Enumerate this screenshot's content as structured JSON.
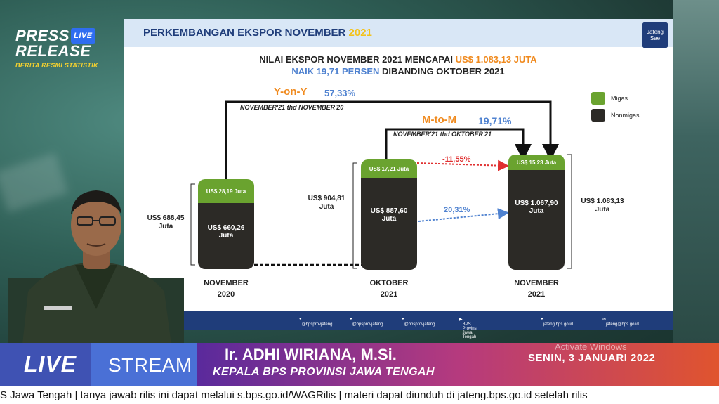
{
  "brand": {
    "press": "PRESS",
    "live_badge": "LIVE",
    "release": "RELEASE",
    "subtitle": "BERITA RESMI STATISTIK"
  },
  "slide": {
    "title_main": "PERKEMBANGAN EKSPOR NOVEMBER ",
    "title_year": "2021",
    "logo_text": "Jateng Sae",
    "headline_1a": "NILAI EKSPOR NOVEMBER 2021 MENCAPAI ",
    "headline_1b": "US$ 1.083,13 JUTA",
    "headline_2a": "NAIK 19,71 PERSEN",
    "headline_2b": " DIBANDING OKTOBER 2021",
    "yoy_label": "Y-on-Y",
    "yoy_value": "57,33%",
    "yoy_sub": "NOVEMBER'21 thd NOVEMBER'20",
    "mtm_label": "M-to-M",
    "mtm_value": "19,71%",
    "mtm_sub": "NOVEMBER'21 thd OKTOBER'21",
    "legend": [
      {
        "label": "Migas",
        "color": "#6aa32f"
      },
      {
        "label": "Nonmigas",
        "color": "#2c2a26"
      }
    ],
    "bars": [
      {
        "total": "US$ 688,45\nJuta",
        "migas": "US$ 28,19 Juta",
        "nonmigas": "US$ 660,26\nJuta",
        "label": "NOVEMBER\n2020"
      },
      {
        "total": "US$ 904,81\nJuta",
        "migas": "US$ 17,21 Juta",
        "nonmigas": "US$ 887,60\nJuta",
        "label": "OKTOBER\n2021"
      },
      {
        "total": "US$ 1.083,13\nJuta",
        "migas": "US$ 15,23 Juta",
        "nonmigas": "US$ 1.067,90\nJuta",
        "label": "NOVEMBER\n2021"
      }
    ],
    "migas_change": "-11,55%",
    "nonmigas_change": "20,31%",
    "footer": [
      {
        "icon": "facebook-icon",
        "text": "@bpsprovjateng"
      },
      {
        "icon": "twitter-icon",
        "text": "@bpsprovjateng"
      },
      {
        "icon": "instagram-icon",
        "text": "@bpsprovjateng"
      },
      {
        "icon": "youtube-icon",
        "text": "BPS Provinsi Jawa Tengah"
      },
      {
        "icon": "globe-icon",
        "text": "jateng.bps.go.id"
      },
      {
        "icon": "mail-icon",
        "text": "jateng@bps.go.id"
      }
    ]
  },
  "livebar": {
    "live": "LIVE",
    "stream": "STREAM",
    "name": "Ir. ADHI WIRIANA, M.Si.",
    "position": "KEPALA BPS PROVINSI JAWA TENGAH",
    "date": "SENIN, 3 JANUARI 2022",
    "watermark": "Activate Windows"
  },
  "ticker": "S Jawa Tengah   |   tanya jawab rilis ini dapat melalui s.bps.go.id/WAGRilis   |   materi dapat diunduh di jateng.bps.go.id setelah rilis"
}
